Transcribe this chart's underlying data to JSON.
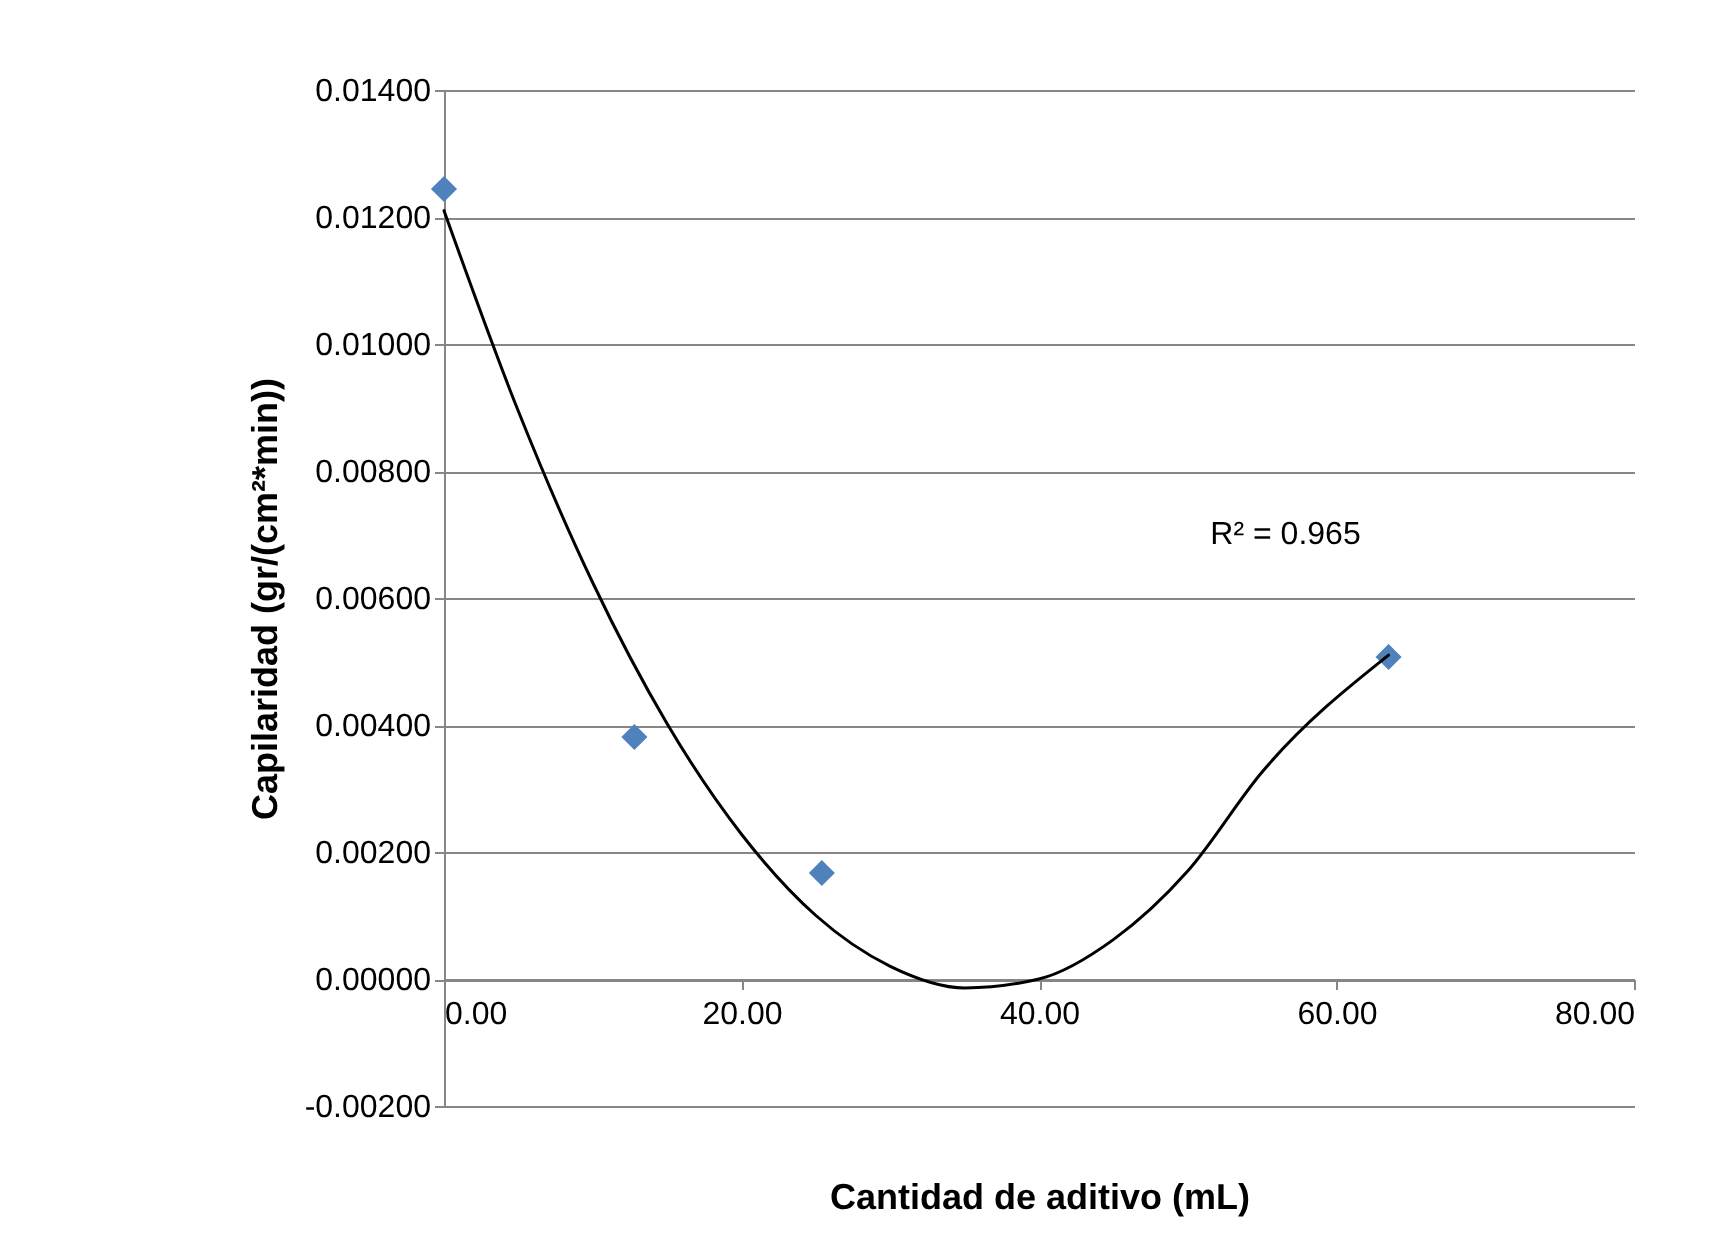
{
  "chart_data": {
    "type": "scatter",
    "xlabel": "Cantidad de aditivo (mL)",
    "ylabel": "Capilaridad (gr/(cm²*min))",
    "series": [
      {
        "color": "#4f81bd",
        "marker": "diamond",
        "x": [
          0,
          12.8,
          25.4,
          63.5
        ],
        "values": [
          0.01244,
          0.00381,
          0.00167,
          0.00507
        ]
      },
      {
        "type": "line",
        "color": "#000000",
        "marker": "none",
        "line_style": "solid",
        "x": [
          0,
          5,
          10,
          15,
          20,
          25,
          30,
          35,
          40,
          45,
          50,
          55,
          63.5
        ],
        "values": [
          0.0121,
          0.00894,
          0.00624,
          0.00402,
          0.00228,
          0.001,
          0.0002,
          -0.00014,
          0.0,
          0.00062,
          0.0017,
          0.00326,
          0.0051
        ]
      }
    ],
    "xlim": [
      0,
      80
    ],
    "xticks": [
      {
        "value": 0,
        "label": "0.00"
      },
      {
        "value": 20,
        "label": "20.00"
      },
      {
        "value": 40,
        "label": "40.00"
      },
      {
        "value": 60,
        "label": "60.00"
      },
      {
        "value": 80,
        "label": "80.00"
      }
    ],
    "ylim": [
      -0.002,
      0.014
    ],
    "yticks": [
      {
        "value": -0.002,
        "label": "-0.00200"
      },
      {
        "value": 0,
        "label": "0.00000"
      },
      {
        "value": 0.002,
        "label": "0.00200"
      },
      {
        "value": 0.004,
        "label": "0.00400"
      },
      {
        "value": 0.006,
        "label": "0.00600"
      },
      {
        "value": 0.008,
        "label": "0.00800"
      },
      {
        "value": 0.01,
        "label": "0.01000"
      },
      {
        "value": 0.012,
        "label": "0.01200"
      },
      {
        "value": 0.014,
        "label": "0.01400"
      }
    ],
    "grid": "y",
    "annotations": [
      "R² = 0.965"
    ]
  }
}
